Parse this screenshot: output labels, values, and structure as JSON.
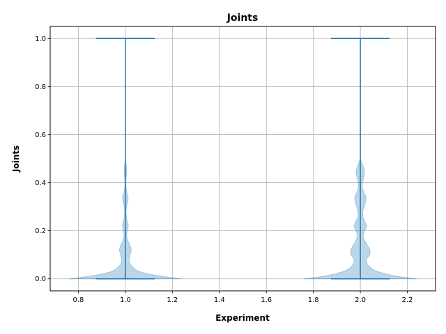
{
  "chart_data": {
    "type": "violin",
    "title": "Joints",
    "xlabel": "Experiment",
    "ylabel": "Joints",
    "xlim": [
      0.68,
      2.32
    ],
    "ylim": [
      -0.05,
      1.05
    ],
    "grid": true,
    "xticks": [
      0.8,
      1.0,
      1.2,
      1.4,
      1.6,
      1.8,
      2.0,
      2.2
    ],
    "xtick_labels": [
      "0.8",
      "1.0",
      "1.2",
      "1.4",
      "1.6",
      "1.8",
      "2.0",
      "2.2"
    ],
    "yticks": [
      0.0,
      0.2,
      0.4,
      0.6,
      0.8,
      1.0
    ],
    "ytick_labels": [
      "0.0",
      "0.2",
      "0.4",
      "0.6",
      "0.8",
      "1.0"
    ],
    "colors": {
      "body": "#1f77b4",
      "body_alpha": 0.3,
      "lines": "#1f77b4",
      "grid": "#b0b0b0"
    },
    "violins": [
      {
        "position": 1.0,
        "min": 0.0,
        "max": 1.0,
        "density_profile": [
          [
            0.0,
            0.24
          ],
          [
            0.01,
            0.16
          ],
          [
            0.02,
            0.1
          ],
          [
            0.03,
            0.06
          ],
          [
            0.04,
            0.04
          ],
          [
            0.06,
            0.02
          ],
          [
            0.08,
            0.015
          ],
          [
            0.1,
            0.02
          ],
          [
            0.12,
            0.026
          ],
          [
            0.14,
            0.02
          ],
          [
            0.16,
            0.01
          ],
          [
            0.18,
            0.005
          ],
          [
            0.2,
            0.008
          ],
          [
            0.22,
            0.013
          ],
          [
            0.24,
            0.008
          ],
          [
            0.26,
            0.004
          ],
          [
            0.28,
            0.003
          ],
          [
            0.3,
            0.005
          ],
          [
            0.32,
            0.01
          ],
          [
            0.34,
            0.012
          ],
          [
            0.36,
            0.006
          ],
          [
            0.38,
            0.003
          ],
          [
            0.4,
            0.002
          ],
          [
            0.42,
            0.003
          ],
          [
            0.44,
            0.006
          ],
          [
            0.46,
            0.005
          ],
          [
            0.48,
            0.002
          ],
          [
            0.5,
            0.0
          ]
        ]
      },
      {
        "position": 2.0,
        "min": 0.0,
        "max": 1.0,
        "density_profile": [
          [
            0.0,
            0.24
          ],
          [
            0.01,
            0.16
          ],
          [
            0.02,
            0.11
          ],
          [
            0.03,
            0.075
          ],
          [
            0.04,
            0.05
          ],
          [
            0.06,
            0.03
          ],
          [
            0.08,
            0.025
          ],
          [
            0.1,
            0.04
          ],
          [
            0.12,
            0.042
          ],
          [
            0.14,
            0.03
          ],
          [
            0.16,
            0.018
          ],
          [
            0.18,
            0.012
          ],
          [
            0.2,
            0.018
          ],
          [
            0.22,
            0.028
          ],
          [
            0.24,
            0.018
          ],
          [
            0.26,
            0.01
          ],
          [
            0.28,
            0.01
          ],
          [
            0.3,
            0.016
          ],
          [
            0.32,
            0.022
          ],
          [
            0.34,
            0.024
          ],
          [
            0.36,
            0.015
          ],
          [
            0.38,
            0.008
          ],
          [
            0.4,
            0.009
          ],
          [
            0.42,
            0.014
          ],
          [
            0.44,
            0.018
          ],
          [
            0.46,
            0.015
          ],
          [
            0.48,
            0.008
          ],
          [
            0.5,
            0.0
          ]
        ]
      }
    ],
    "cap_halfwidth": 0.125
  }
}
